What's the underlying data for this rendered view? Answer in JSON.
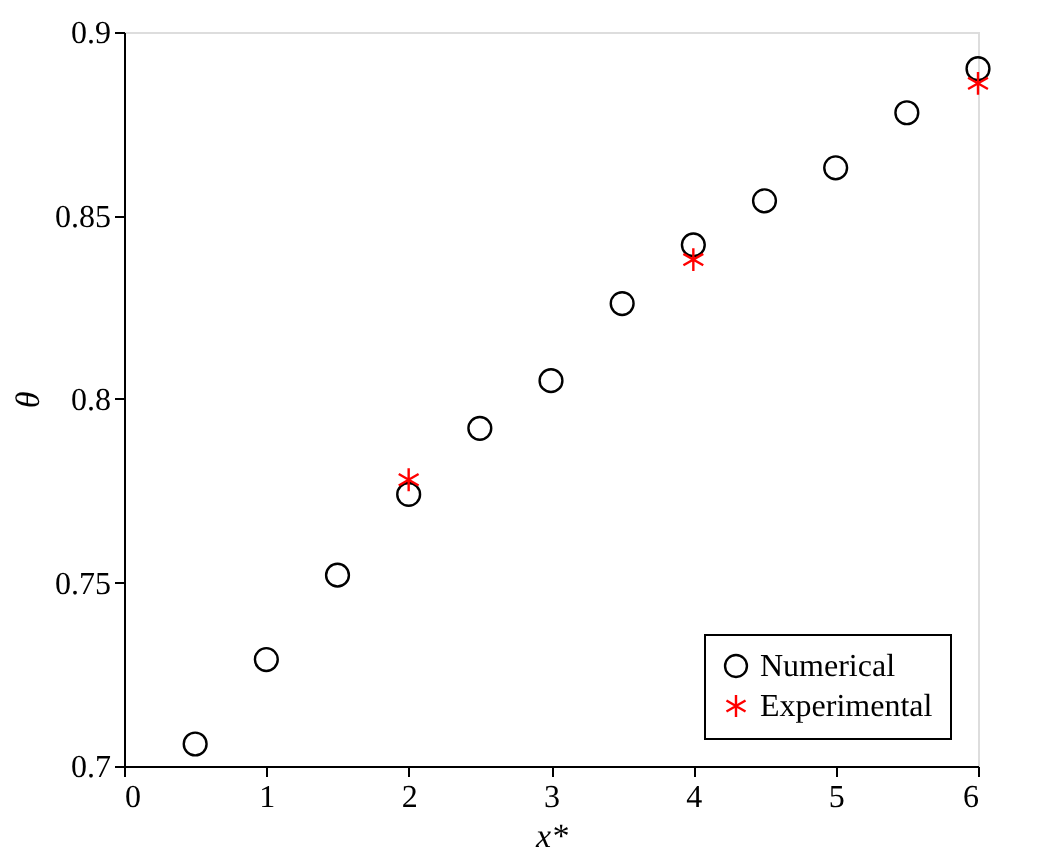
{
  "chart_data": {
    "type": "scatter",
    "xlabel": "x*",
    "ylabel": "θ",
    "xlim": [
      0,
      6
    ],
    "xticks": [
      0,
      1,
      2,
      3,
      4,
      5,
      6
    ],
    "ylim": [
      0.7,
      0.9
    ],
    "yticks": [
      0.7,
      0.75,
      0.8,
      0.85,
      0.9
    ],
    "grid": false,
    "legend": "bottom right",
    "series": [
      {
        "name": "Numerical",
        "color": "#000000",
        "marker": "circle",
        "x": [
          0.5,
          1,
          1.5,
          2,
          2.5,
          3,
          3.5,
          4,
          4.5,
          5,
          5.5,
          6
        ],
        "values": [
          0.706,
          0.729,
          0.752,
          0.774,
          0.792,
          0.805,
          0.826,
          0.842,
          0.854,
          0.863,
          0.878,
          0.89
        ]
      },
      {
        "name": "Experimental",
        "color": "#ff0000",
        "marker": "cross",
        "x": [
          2,
          4,
          6
        ],
        "values": [
          0.778,
          0.838,
          0.886
        ]
      }
    ]
  }
}
